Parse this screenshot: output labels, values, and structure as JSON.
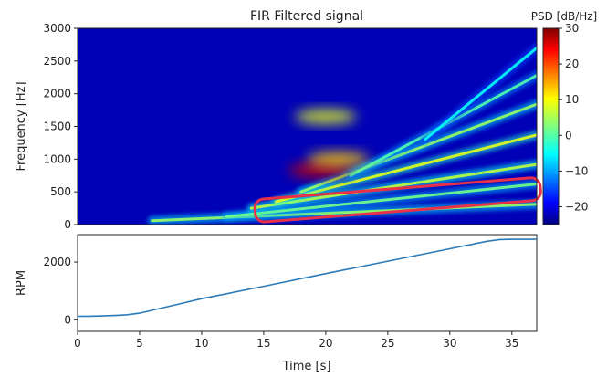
{
  "chart_data": [
    {
      "type": "heatmap",
      "title": "FIR Filtered signal",
      "xlabel": "",
      "ylabel": "Frequency [Hz]",
      "xlim": [
        0,
        37
      ],
      "ylim": [
        0,
        3000
      ],
      "yticks": [
        0,
        500,
        1000,
        1500,
        2000,
        2500,
        3000
      ],
      "colorbar": {
        "label": "PSD [dB/Hz]",
        "range": [
          -25,
          30
        ],
        "ticks": [
          30,
          20,
          10,
          0,
          -10,
          -20
        ],
        "colormap": "jet"
      },
      "background_level_db": -22,
      "harmonic_bands": [
        {
          "t_start": 6,
          "t_end": 37,
          "f_start": 60,
          "f_end": 310,
          "level_db": 4
        },
        {
          "t_start": 12,
          "t_end": 37,
          "f_start": 120,
          "f_end": 620,
          "level_db": 2
        },
        {
          "t_start": 14,
          "t_end": 37,
          "f_start": 250,
          "f_end": 920,
          "level_db": 6
        },
        {
          "t_start": 16,
          "t_end": 37,
          "f_start": 350,
          "f_end": 1370,
          "level_db": 8
        },
        {
          "t_start": 18,
          "t_end": 37,
          "f_start": 500,
          "f_end": 1840,
          "level_db": 4
        },
        {
          "t_start": 22,
          "t_end": 37,
          "f_start": 750,
          "f_end": 2280,
          "level_db": 0
        },
        {
          "t_start": 28,
          "t_end": 37,
          "f_start": 1300,
          "f_end": 2700,
          "level_db": -4
        }
      ],
      "hot_regions": [
        {
          "t": 19.5,
          "f": 830,
          "level_db": 26
        },
        {
          "t": 21,
          "f": 1000,
          "level_db": 12
        },
        {
          "t": 20,
          "f": 1650,
          "level_db": 8
        }
      ],
      "annotations": [
        {
          "shape": "rounded-rect",
          "color": "#e8304a",
          "t_start": 14.3,
          "t_end": 37.3,
          "f_lower_start": 30,
          "f_lower_end": 380,
          "f_upper_start": 380,
          "f_upper_end": 720
        }
      ]
    },
    {
      "type": "line",
      "title": "",
      "xlabel": "Time [s]",
      "ylabel": "RPM",
      "xlim": [
        0,
        37
      ],
      "ylim": [
        -400,
        2950
      ],
      "xticks": [
        0,
        5,
        10,
        15,
        20,
        25,
        30,
        35
      ],
      "yticks": [
        0,
        2000
      ],
      "color": "#2b7bb9",
      "series": [
        {
          "x": [
            0,
            1,
            2,
            3,
            4,
            5,
            6,
            8,
            10,
            15,
            20,
            25,
            30,
            33,
            34,
            35,
            36,
            37
          ],
          "values": [
            120,
            125,
            135,
            150,
            175,
            230,
            330,
            530,
            730,
            1160,
            1600,
            2030,
            2460,
            2720,
            2780,
            2790,
            2790,
            2790
          ]
        }
      ]
    }
  ]
}
